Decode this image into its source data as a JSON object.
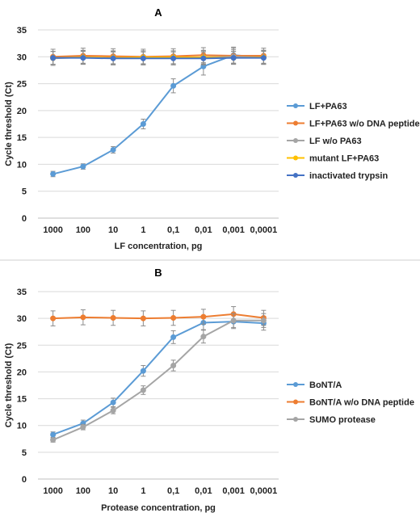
{
  "chart_data": [
    {
      "type": "line",
      "title": "A",
      "xlabel": "LF concentration, pg",
      "ylabel": "Cycle threshold (Ct)",
      "categories": [
        "1000",
        "100",
        "10",
        "1",
        "0,1",
        "0,01",
        "0,001",
        "0,0001"
      ],
      "ylim": [
        0,
        35
      ],
      "yticks": [
        "0",
        "5",
        "10",
        "15",
        "20",
        "25",
        "30",
        "35"
      ],
      "grid": true,
      "legend_position": "right",
      "series": [
        {
          "name": "LF+PA63",
          "color": "#5b9bd5",
          "values": [
            8.2,
            9.6,
            12.7,
            17.5,
            24.6,
            28.2,
            30.3,
            29.9
          ],
          "errors": [
            0.5,
            0.5,
            0.6,
            0.9,
            1.3,
            1.6,
            1.5,
            1.3
          ]
        },
        {
          "name": "LF+PA63 w/o DNA peptide",
          "color": "#ed7d31",
          "values": [
            30.0,
            30.2,
            30.1,
            30.0,
            30.1,
            30.3,
            30.2,
            30.2
          ],
          "errors": [
            1.4,
            1.4,
            1.4,
            1.4,
            1.4,
            1.4,
            1.4,
            1.4
          ]
        },
        {
          "name": "LF w/o PA63",
          "color": "#a5a5a5",
          "values": [
            29.7,
            29.9,
            29.8,
            29.8,
            29.8,
            29.9,
            30.0,
            29.9
          ],
          "errors": [
            1.3,
            1.3,
            1.3,
            1.3,
            1.3,
            1.3,
            1.3,
            1.3
          ]
        },
        {
          "name": "mutant LF+PA63",
          "color": "#ffc000",
          "values": [
            29.8,
            29.9,
            29.8,
            29.9,
            29.9,
            29.9,
            29.8,
            29.9
          ],
          "errors": [
            1.2,
            1.2,
            1.2,
            1.2,
            1.2,
            1.2,
            1.2,
            1.2
          ]
        },
        {
          "name": "inactivated trypsin",
          "color": "#4472c4",
          "values": [
            29.8,
            29.8,
            29.7,
            29.7,
            29.7,
            29.7,
            29.8,
            29.8
          ],
          "errors": [
            1.2,
            1.2,
            1.2,
            1.2,
            1.2,
            1.2,
            1.2,
            1.2
          ]
        }
      ]
    },
    {
      "type": "line",
      "title": "B",
      "xlabel": "Protease concentration, pg",
      "ylabel": "Cycle threshold (Ct)",
      "categories": [
        "1000",
        "100",
        "10",
        "1",
        "0,1",
        "0,01",
        "0,001",
        "0,0001"
      ],
      "ylim": [
        0,
        35
      ],
      "yticks": [
        "0",
        "5",
        "10",
        "15",
        "20",
        "25",
        "30",
        "35"
      ],
      "grid": true,
      "legend_position": "right",
      "series": [
        {
          "name": "BoNT/A",
          "color": "#5b9bd5",
          "values": [
            8.3,
            10.4,
            14.3,
            20.2,
            26.5,
            29.2,
            29.4,
            29.1
          ],
          "errors": [
            0.5,
            0.6,
            0.8,
            1.0,
            1.2,
            1.3,
            1.3,
            1.3
          ]
        },
        {
          "name": "BoNT/A w/o DNA peptide",
          "color": "#ed7d31",
          "values": [
            30.0,
            30.2,
            30.1,
            30.0,
            30.1,
            30.3,
            30.8,
            30.1
          ],
          "errors": [
            1.4,
            1.4,
            1.4,
            1.4,
            1.4,
            1.4,
            1.4,
            1.4
          ]
        },
        {
          "name": "SUMO protease",
          "color": "#a5a5a5",
          "values": [
            7.3,
            9.7,
            12.8,
            16.6,
            21.2,
            26.6,
            29.6,
            29.6
          ],
          "errors": [
            0.4,
            0.5,
            0.6,
            0.8,
            1.0,
            1.2,
            1.3,
            1.3
          ]
        }
      ]
    }
  ]
}
